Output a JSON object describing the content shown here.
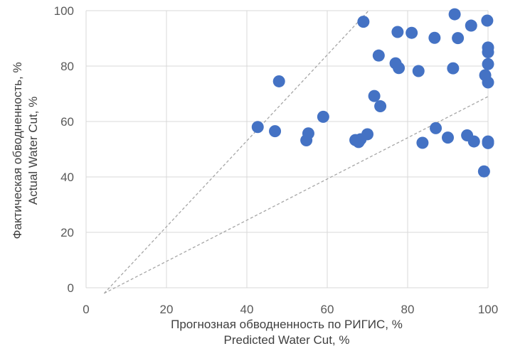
{
  "chart_data": {
    "type": "scatter",
    "title": "",
    "xlabel": [
      "Прогнозная обводненность по РИГИС, %",
      "Predicted Water Cut, %"
    ],
    "ylabel": [
      "Фактическая обводненность, %",
      "Actual Water Cut, %"
    ],
    "xlim": [
      0,
      100
    ],
    "ylim": [
      0,
      100
    ],
    "xticks": [
      0,
      20,
      40,
      60,
      80,
      100
    ],
    "yticks": [
      0,
      20,
      40,
      60,
      80,
      100
    ],
    "grid": true,
    "legend": "none",
    "colors": {
      "point": "#4472C4",
      "grid": "#d9d9d9",
      "guide": "#a6a6a6"
    },
    "guide_lines": [
      {
        "x": [
          4.5,
          70.3
        ],
        "y": [
          -2,
          100
        ]
      },
      {
        "x": [
          4.5,
          100
        ],
        "y": [
          -2,
          69
        ]
      }
    ],
    "points": [
      {
        "x": 42.7,
        "y": 58.0
      },
      {
        "x": 47.0,
        "y": 56.5
      },
      {
        "x": 48.0,
        "y": 74.5
      },
      {
        "x": 54.8,
        "y": 53.2
      },
      {
        "x": 55.3,
        "y": 55.7
      },
      {
        "x": 59.0,
        "y": 61.7
      },
      {
        "x": 67.0,
        "y": 53.3
      },
      {
        "x": 67.8,
        "y": 52.6
      },
      {
        "x": 68.3,
        "y": 53.6
      },
      {
        "x": 69.0,
        "y": 96.0
      },
      {
        "x": 70.0,
        "y": 55.4
      },
      {
        "x": 71.7,
        "y": 69.2
      },
      {
        "x": 72.8,
        "y": 83.8
      },
      {
        "x": 73.2,
        "y": 65.5
      },
      {
        "x": 77.0,
        "y": 81.0
      },
      {
        "x": 77.5,
        "y": 92.3
      },
      {
        "x": 77.8,
        "y": 79.3
      },
      {
        "x": 81.0,
        "y": 92.0
      },
      {
        "x": 82.7,
        "y": 78.2
      },
      {
        "x": 83.7,
        "y": 52.3
      },
      {
        "x": 86.7,
        "y": 90.2
      },
      {
        "x": 87.0,
        "y": 57.6
      },
      {
        "x": 90.0,
        "y": 54.2
      },
      {
        "x": 91.3,
        "y": 79.2
      },
      {
        "x": 91.7,
        "y": 98.7
      },
      {
        "x": 92.5,
        "y": 90.1
      },
      {
        "x": 94.8,
        "y": 55.0
      },
      {
        "x": 95.8,
        "y": 94.6
      },
      {
        "x": 96.5,
        "y": 52.8
      },
      {
        "x": 99.0,
        "y": 42.0
      },
      {
        "x": 99.3,
        "y": 76.7
      },
      {
        "x": 99.8,
        "y": 96.4
      },
      {
        "x": 100.0,
        "y": 86.7
      },
      {
        "x": 100.0,
        "y": 85.0
      },
      {
        "x": 100.0,
        "y": 80.7
      },
      {
        "x": 100.0,
        "y": 74.1
      },
      {
        "x": 100.0,
        "y": 52.8
      },
      {
        "x": 100.0,
        "y": 52.2
      }
    ]
  }
}
